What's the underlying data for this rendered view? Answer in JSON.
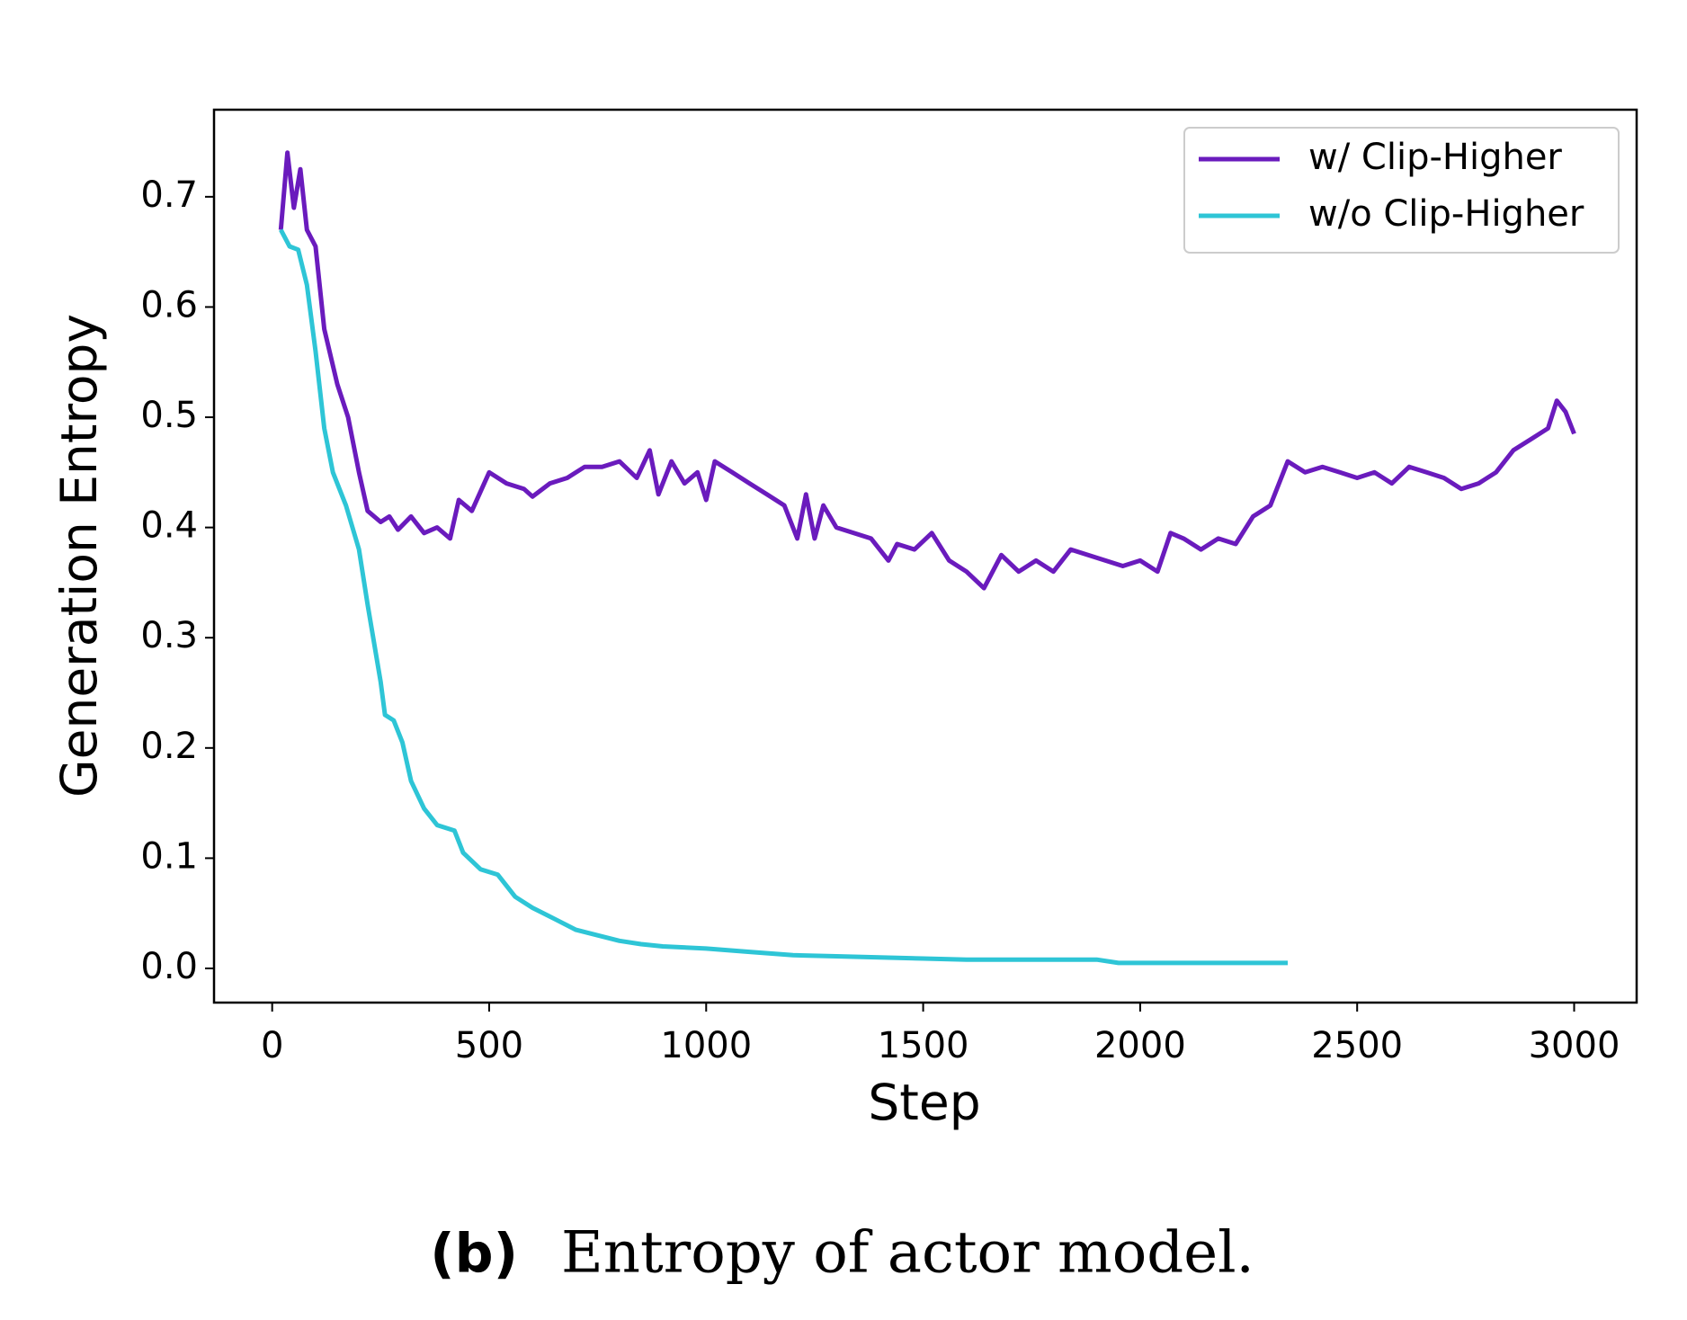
{
  "chart_data": {
    "type": "line",
    "xlabel": "Step",
    "ylabel": "Generation Entropy",
    "caption_label": "(b)",
    "caption": "Entropy of actor model.",
    "xlim": [
      -134,
      3144
    ],
    "ylim": [
      -0.031,
      0.779
    ],
    "xticks": [
      0,
      500,
      1000,
      1500,
      2000,
      2500,
      3000
    ],
    "yticks": [
      {
        "value": 0,
        "label": "0.0"
      },
      0.1,
      0.2,
      0.3,
      0.4,
      0.5,
      0.6,
      0.7
    ],
    "legend": "upper right",
    "series": [
      {
        "name": "w/ Clip-Higher",
        "color": "#6a1bbd",
        "x": [
          20,
          35,
          50,
          65,
          80,
          100,
          120,
          150,
          175,
          200,
          220,
          250,
          270,
          290,
          320,
          350,
          380,
          410,
          430,
          460,
          500,
          540,
          580,
          600,
          640,
          680,
          720,
          760,
          800,
          840,
          870,
          890,
          920,
          950,
          980,
          1000,
          1020,
          1060,
          1100,
          1140,
          1180,
          1210,
          1230,
          1250,
          1270,
          1300,
          1340,
          1380,
          1420,
          1440,
          1480,
          1520,
          1560,
          1600,
          1640,
          1680,
          1720,
          1760,
          1800,
          1840,
          1880,
          1920,
          1960,
          2000,
          2040,
          2070,
          2100,
          2140,
          2180,
          2220,
          2260,
          2300,
          2340,
          2380,
          2420,
          2460,
          2500,
          2540,
          2580,
          2620,
          2660,
          2700,
          2740,
          2780,
          2820,
          2860,
          2900,
          2940,
          2960,
          2980,
          3000
        ],
        "values": [
          0.67,
          0.74,
          0.69,
          0.725,
          0.67,
          0.655,
          0.58,
          0.53,
          0.5,
          0.45,
          0.415,
          0.405,
          0.41,
          0.398,
          0.41,
          0.395,
          0.4,
          0.39,
          0.425,
          0.415,
          0.45,
          0.44,
          0.435,
          0.428,
          0.44,
          0.445,
          0.455,
          0.455,
          0.46,
          0.445,
          0.47,
          0.43,
          0.46,
          0.44,
          0.45,
          0.425,
          0.46,
          0.45,
          0.44,
          0.43,
          0.42,
          0.39,
          0.43,
          0.39,
          0.42,
          0.4,
          0.395,
          0.39,
          0.37,
          0.385,
          0.38,
          0.395,
          0.37,
          0.36,
          0.345,
          0.375,
          0.36,
          0.37,
          0.36,
          0.38,
          0.375,
          0.37,
          0.365,
          0.37,
          0.36,
          0.395,
          0.39,
          0.38,
          0.39,
          0.385,
          0.41,
          0.42,
          0.46,
          0.45,
          0.455,
          0.45,
          0.445,
          0.45,
          0.44,
          0.455,
          0.45,
          0.445,
          0.435,
          0.44,
          0.45,
          0.47,
          0.48,
          0.49,
          0.515,
          0.505,
          0.485
        ]
      },
      {
        "name": "w/o Clip-Higher",
        "color": "#2ec5d6",
        "x": [
          20,
          40,
          60,
          80,
          100,
          120,
          140,
          170,
          200,
          220,
          250,
          260,
          280,
          300,
          320,
          350,
          380,
          420,
          440,
          480,
          520,
          560,
          600,
          650,
          700,
          750,
          800,
          850,
          900,
          1000,
          1100,
          1200,
          1300,
          1400,
          1500,
          1600,
          1700,
          1800,
          1900,
          1950,
          2000,
          2100,
          2200,
          2340
        ],
        "values": [
          0.67,
          0.655,
          0.652,
          0.62,
          0.56,
          0.49,
          0.45,
          0.42,
          0.38,
          0.33,
          0.26,
          0.23,
          0.225,
          0.205,
          0.17,
          0.145,
          0.13,
          0.125,
          0.105,
          0.09,
          0.085,
          0.065,
          0.055,
          0.045,
          0.035,
          0.03,
          0.025,
          0.022,
          0.02,
          0.018,
          0.015,
          0.012,
          0.011,
          0.01,
          0.009,
          0.008,
          0.008,
          0.008,
          0.008,
          0.005,
          0.005,
          0.005,
          0.005,
          0.005
        ]
      }
    ]
  }
}
